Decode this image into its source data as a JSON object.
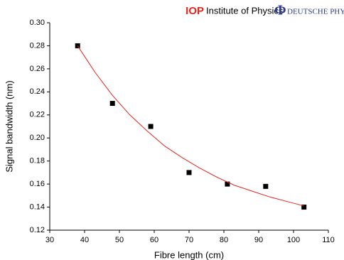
{
  "header": {
    "iop": "IOP",
    "iop_name": "Institute of Physics",
    "dpg_symbol": "Φ",
    "dpg_name": "DEUTSCHE PHYSIKALISCHE G"
  },
  "chart_data": {
    "type": "scatter",
    "x_label": "Fibre length (cm)",
    "y_label": "Signal bandwidth (nm)",
    "xlim": [
      30,
      110
    ],
    "xticks": [
      30,
      40,
      50,
      60,
      70,
      80,
      90,
      100,
      110
    ],
    "ylim": [
      0.12,
      0.3
    ],
    "yticks": [
      0.12,
      0.14,
      0.16,
      0.18,
      {
        "value": 0.2,
        "label": "0.20"
      },
      0.22,
      0.24,
      0.26,
      0.28,
      {
        "value": 0.3,
        "label": "0.30"
      }
    ],
    "series": [
      {
        "mode": "markers",
        "marker": "square",
        "color": "#000000",
        "x": [
          38,
          48,
          59,
          70,
          81,
          92,
          103
        ],
        "values": [
          0.28,
          0.23,
          0.21,
          0.17,
          0.16,
          0.158,
          0.14
        ]
      },
      {
        "mode": "line",
        "color": "#e8231f",
        "x": [
          38,
          43,
          48,
          53,
          58,
          63,
          68,
          73,
          78,
          83,
          88,
          93,
          98,
          103
        ],
        "values": [
          0.28,
          0.257,
          0.237,
          0.22,
          0.206,
          0.193,
          0.183,
          0.174,
          0.166,
          0.159,
          0.154,
          0.149,
          0.145,
          0.141
        ]
      }
    ]
  }
}
